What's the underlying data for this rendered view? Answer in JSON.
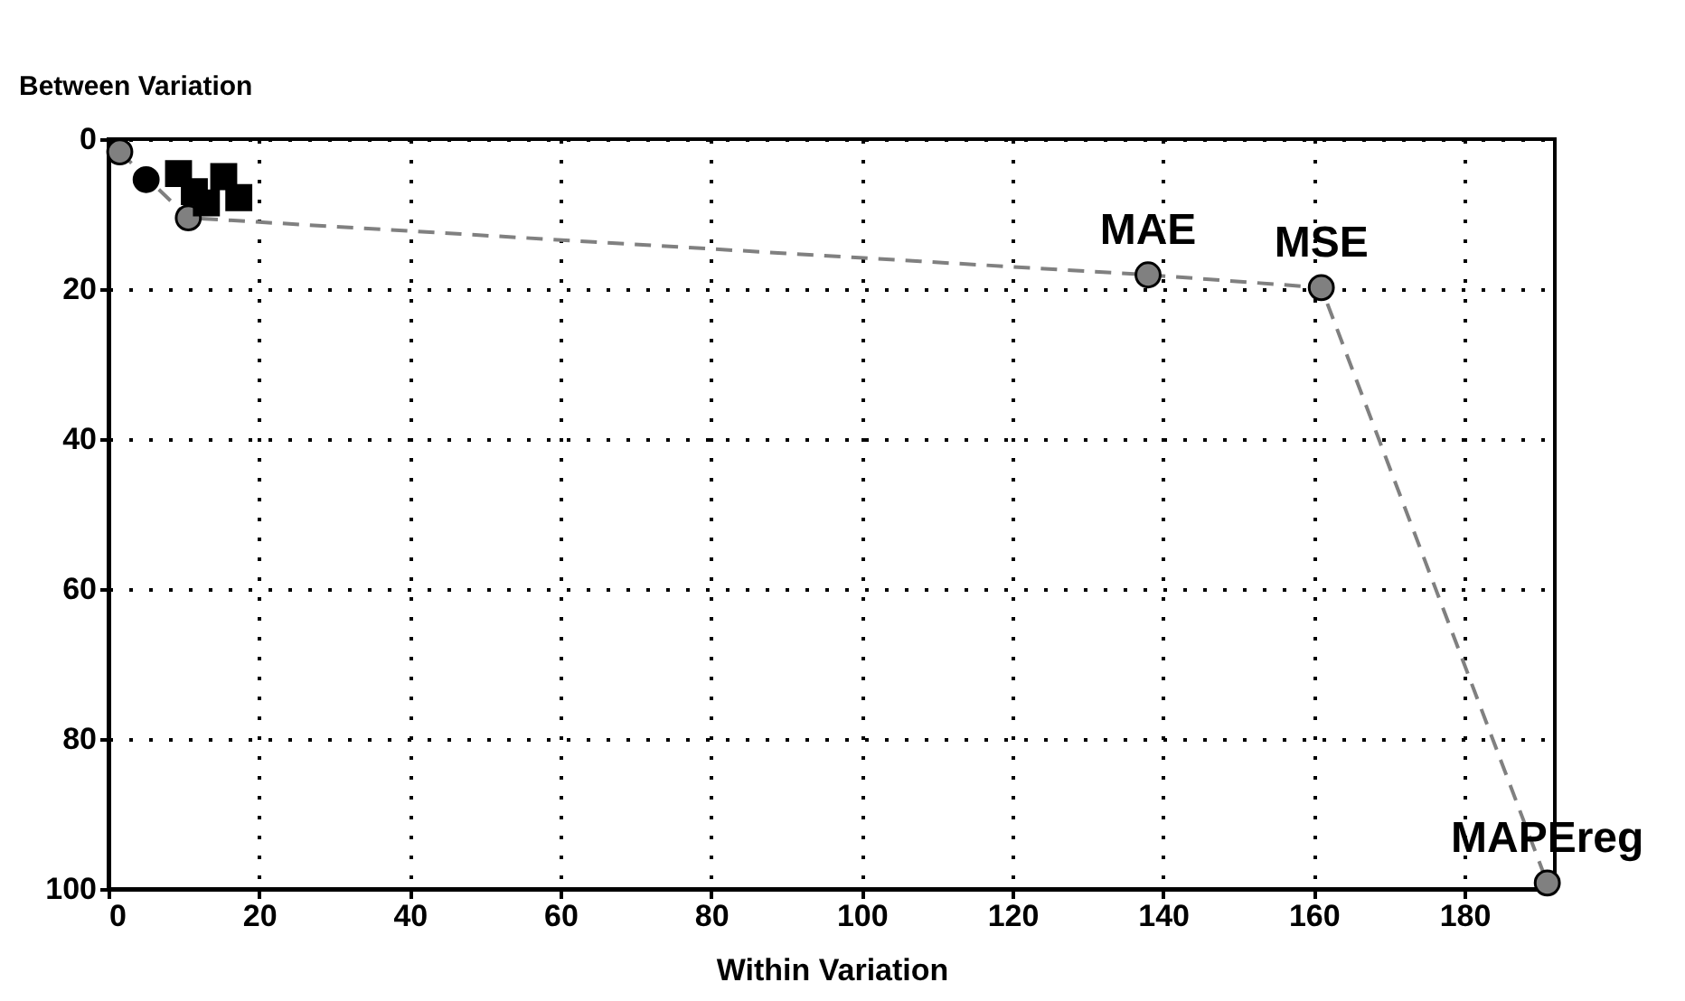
{
  "chart_data": {
    "type": "scatter",
    "xlabel": "Within Variation",
    "ylabel": "Between Variation",
    "xlim": [
      0,
      192
    ],
    "ylim": [
      100,
      0
    ],
    "xticks": [
      0,
      20,
      40,
      60,
      80,
      100,
      120,
      140,
      160,
      180
    ],
    "yticks": [
      0,
      20,
      40,
      60,
      80,
      100
    ],
    "grid": true,
    "series": [
      {
        "type": "line",
        "color": "#808080",
        "marker": "circle",
        "line_style": "dashed",
        "x": [
          1.5,
          10.6,
          138,
          161,
          191
        ],
        "values": [
          1.7,
          10.5,
          18.1,
          19.8,
          99.2
        ]
      },
      {
        "color": "#000000",
        "marker": "square",
        "x": [
          9.3,
          11.4,
          13,
          15.3,
          17.3
        ],
        "values": [
          4.6,
          7,
          8.5,
          5,
          7.8
        ]
      },
      {
        "color": "#000000",
        "marker": "circle",
        "x": [
          5
        ],
        "values": [
          5.4
        ]
      }
    ],
    "annotations": [
      {
        "text": "MAE",
        "x": 138,
        "y": 18.1
      },
      {
        "text": "MSE",
        "x": 161,
        "y": 19.8
      },
      {
        "text": "MAPEreg",
        "x": 191,
        "y": 99.2
      }
    ]
  }
}
